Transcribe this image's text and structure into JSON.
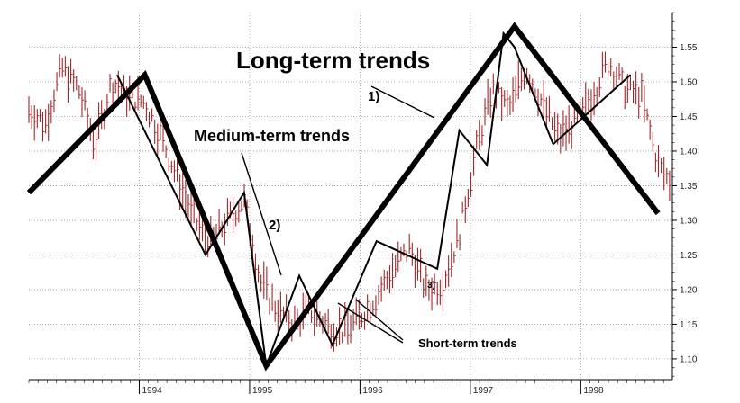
{
  "chart_data": {
    "type": "bar",
    "subtype": "ohlc-price-with-trendlines",
    "title": "",
    "xlabel": "",
    "ylabel": "",
    "grid": true,
    "grid_style": "dotted",
    "x_range": [
      1993.0,
      1998.83
    ],
    "ylim": [
      1.07,
      1.6
    ],
    "y_axis_position": "right",
    "x_tick_labels": [
      "1994",
      "1995",
      "1996",
      "1997",
      "1998"
    ],
    "x_tick_values": [
      1994,
      1995,
      1996,
      1997,
      1998
    ],
    "y_tick_values": [
      1.1,
      1.15,
      1.2,
      1.25,
      1.3,
      1.35,
      1.4,
      1.45,
      1.5,
      1.55
    ],
    "y_tick_labels": [
      "1.10",
      "1.15",
      "1.20",
      "1.25",
      "1.30",
      "1.35",
      "1.40",
      "1.45",
      "1.50",
      "1.55"
    ],
    "price_color": "#a0262a",
    "trend_color": "#000000",
    "price_series": {
      "x": [
        1993.0,
        1993.15,
        1993.3,
        1993.45,
        1993.6,
        1993.75,
        1993.9,
        1994.05,
        1994.2,
        1994.35,
        1994.5,
        1994.65,
        1994.8,
        1994.95,
        1995.1,
        1995.25,
        1995.4,
        1995.55,
        1995.7,
        1995.85,
        1996.0,
        1996.15,
        1996.3,
        1996.45,
        1996.6,
        1996.75,
        1996.9,
        1997.05,
        1997.2,
        1997.35,
        1997.5,
        1997.65,
        1997.8,
        1997.95,
        1998.1,
        1998.25,
        1998.4,
        1998.55,
        1998.7,
        1998.83
      ],
      "y": [
        1.46,
        1.44,
        1.52,
        1.49,
        1.41,
        1.5,
        1.48,
        1.47,
        1.42,
        1.36,
        1.3,
        1.27,
        1.3,
        1.33,
        1.21,
        1.17,
        1.15,
        1.17,
        1.15,
        1.14,
        1.16,
        1.19,
        1.23,
        1.26,
        1.2,
        1.21,
        1.28,
        1.4,
        1.49,
        1.46,
        1.52,
        1.47,
        1.42,
        1.44,
        1.48,
        1.53,
        1.49,
        1.48,
        1.38,
        1.35
      ]
    },
    "long_term_trend": {
      "label": "Long-term trends",
      "number": "1)",
      "x": [
        1993.0,
        1994.05,
        1995.15,
        1997.4,
        1998.7
      ],
      "y": [
        1.34,
        1.51,
        1.09,
        1.58,
        1.31
      ]
    },
    "medium_term_trend": {
      "label": "Medium-term trends",
      "number": "2)",
      "segments": [
        {
          "x": [
            1993.8,
            1994.6,
            1994.95,
            1995.15,
            1995.45,
            1995.75,
            1996.15,
            1996.7,
            1996.9,
            1997.15,
            1997.3,
            1997.4,
            1997.75
          ],
          "y": [
            1.51,
            1.25,
            1.34,
            1.09,
            1.22,
            1.12,
            1.27,
            1.23,
            1.43,
            1.38,
            1.57,
            1.55,
            1.41
          ]
        },
        {
          "x": [
            1997.75,
            1998.45
          ],
          "y": [
            1.41,
            1.51
          ]
        }
      ]
    },
    "short_term_trend": {
      "label": "Short-term trends",
      "number": "3)"
    },
    "annotations": [
      {
        "text": "Long-term trends",
        "id": "long"
      },
      {
        "text": "1)",
        "id": "one"
      },
      {
        "text": "Medium-term trends",
        "id": "medium"
      },
      {
        "text": "2)",
        "id": "two"
      },
      {
        "text": "Short-term trends",
        "id": "short"
      },
      {
        "text": "3)",
        "id": "three"
      }
    ]
  }
}
